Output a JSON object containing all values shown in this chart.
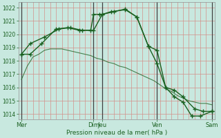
{
  "xlabel": "Pression niveau de la mer( hPa )",
  "bg_color": "#c8e8df",
  "grid_color_h": "#d4908a",
  "grid_color_v": "#d4908a",
  "line_color": "#1a6020",
  "ylim": [
    1013.6,
    1022.4
  ],
  "yticks": [
    1014,
    1015,
    1016,
    1017,
    1018,
    1019,
    1020,
    1021,
    1022
  ],
  "xlim": [
    0,
    34
  ],
  "day_ticks_x": [
    0.5,
    13.0,
    14.5,
    24.0,
    33.5
  ],
  "day_labels": [
    "Mer",
    "Dim",
    "Jeu",
    "Ven",
    "Sam"
  ],
  "vlines_dark": [
    0.5,
    13.0,
    14.5,
    24.0,
    33.5
  ],
  "line1_x": [
    0.5,
    1.5,
    2.5,
    3.5,
    4.5,
    5.5,
    6.5,
    7.5,
    8.5,
    9.5,
    10.5,
    11.5,
    12.5,
    13.5,
    14.5,
    15.5,
    16.5,
    17.5,
    18.5,
    19.5,
    20.5,
    21.5,
    22.5,
    23.5,
    24.5,
    25.5,
    26.5,
    27.5,
    28.5,
    29.5,
    30.5,
    31.5,
    32.5,
    33.5
  ],
  "line1_y": [
    1016.6,
    1017.6,
    1018.3,
    1018.5,
    1018.8,
    1018.9,
    1018.9,
    1018.9,
    1018.8,
    1018.7,
    1018.6,
    1018.5,
    1018.4,
    1018.2,
    1018.1,
    1017.9,
    1017.8,
    1017.6,
    1017.5,
    1017.3,
    1017.1,
    1016.9,
    1016.7,
    1016.5,
    1016.2,
    1015.9,
    1015.7,
    1015.4,
    1015.2,
    1015.0,
    1014.9,
    1014.8,
    1014.8,
    1014.7
  ],
  "line2_x": [
    0.5,
    2.0,
    4.0,
    6.5,
    8.5,
    10.5,
    12.5,
    13.0,
    14.0,
    14.5,
    16.5,
    18.5,
    20.5,
    22.5,
    24.0,
    25.5,
    27.0,
    28.5,
    30.5,
    32.0,
    33.5
  ],
  "line2_y": [
    1018.5,
    1018.5,
    1019.3,
    1020.4,
    1020.5,
    1020.3,
    1020.3,
    1021.5,
    1021.5,
    1021.5,
    1021.7,
    1021.9,
    1021.3,
    1019.1,
    1018.8,
    1016.0,
    1015.8,
    1015.3,
    1014.4,
    1014.2,
    1014.2
  ],
  "line3_x": [
    0.5,
    2.0,
    4.5,
    7.0,
    9.0,
    11.0,
    13.0,
    14.5,
    16.0,
    18.5,
    20.5,
    22.5,
    24.0,
    25.5,
    27.0,
    28.5,
    30.0,
    31.5,
    33.5
  ],
  "line3_y": [
    1018.5,
    1019.3,
    1019.8,
    1020.4,
    1020.5,
    1020.3,
    1020.3,
    1021.5,
    1021.7,
    1021.85,
    1021.3,
    1019.1,
    1017.8,
    1016.0,
    1015.3,
    1014.9,
    1013.85,
    1013.85,
    1014.2
  ]
}
